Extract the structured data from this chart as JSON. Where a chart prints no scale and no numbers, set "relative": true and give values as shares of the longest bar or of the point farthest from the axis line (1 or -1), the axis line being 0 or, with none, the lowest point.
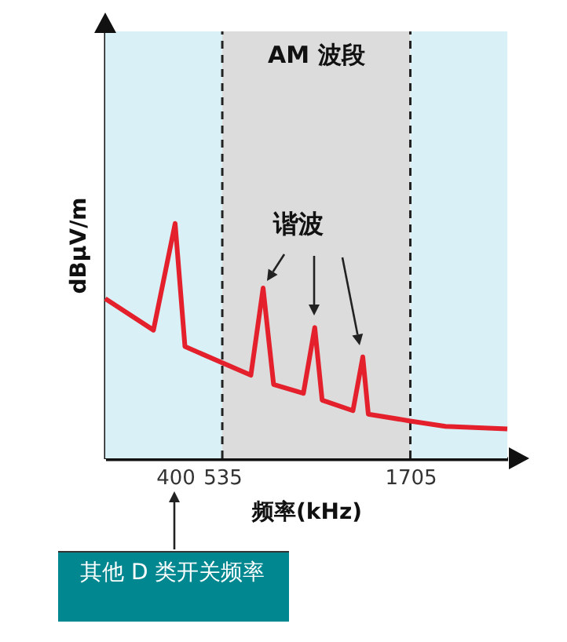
{
  "chart_data": {
    "type": "line",
    "xlabel": "频率(kHz)",
    "ylabel": "dBμV/m",
    "relative": true,
    "log": "x",
    "xlim": [
      260,
      3100
    ],
    "xticks": [
      400,
      535,
      1705
    ],
    "series": [
      {
        "color": "#e3202b",
        "x": [
          260,
          350,
          400,
          425,
          638,
          688,
          734,
          882,
          946,
          990,
          1197,
          1272,
          1316,
          1705,
          2117,
          3100
        ],
        "values": [
          0.68,
          0.546,
          1.0,
          0.476,
          0.354,
          0.725,
          0.315,
          0.277,
          0.557,
          0.248,
          0.203,
          0.432,
          0.188,
          0.159,
          0.136,
          0.125
        ]
      }
    ],
    "bands": [
      {
        "axis": "x",
        "from": 260,
        "to": 535,
        "color": "#d9f0f6"
      },
      {
        "axis": "x",
        "from": 535,
        "to": 1705,
        "color": "#dcdcdc",
        "label": "AM 波段"
      },
      {
        "axis": "x",
        "from": 1705,
        "to": 3100,
        "color": "#d9f0f6"
      }
    ],
    "ref_lines": [
      {
        "axis": "x",
        "value": 535,
        "color": "#222222",
        "line_style": "dashed"
      },
      {
        "axis": "x",
        "value": 1705,
        "color": "#222222",
        "line_style": "dashed"
      }
    ],
    "annotations": [
      "谐波",
      "其他 D 类开关频率"
    ]
  }
}
